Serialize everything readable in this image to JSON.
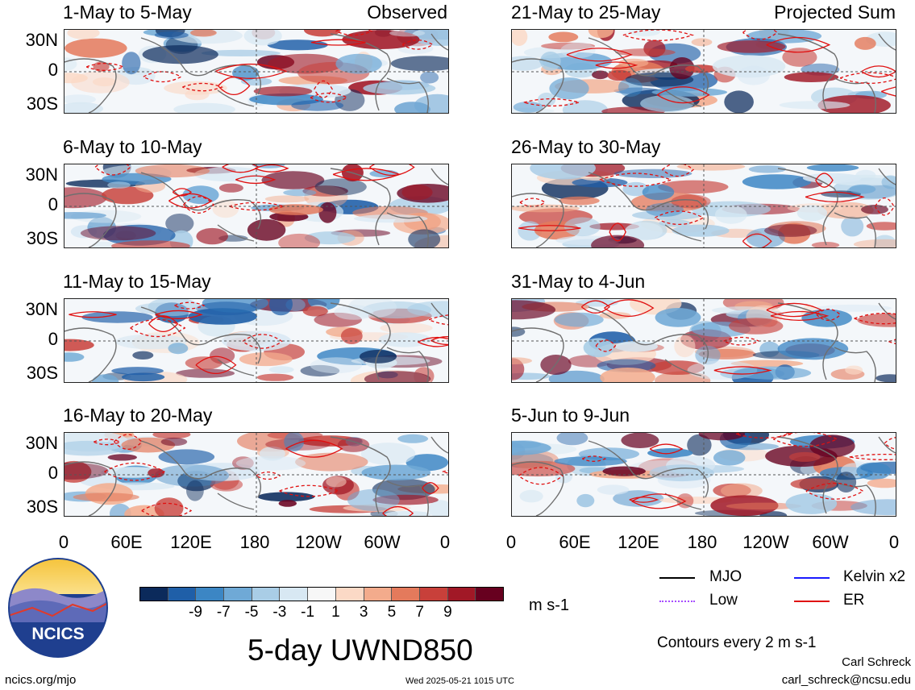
{
  "panels": [
    {
      "title": "1-May to 5-May",
      "corner": "Observed"
    },
    {
      "title": "21-May to 25-May",
      "corner": "Projected Sum"
    },
    {
      "title": "6-May to 10-May",
      "corner": ""
    },
    {
      "title": "26-May to 30-May",
      "corner": ""
    },
    {
      "title": "11-May to 15-May",
      "corner": ""
    },
    {
      "title": "31-May to 4-Jun",
      "corner": ""
    },
    {
      "title": "16-May to 20-May",
      "corner": ""
    },
    {
      "title": "5-Jun to 9-Jun",
      "corner": ""
    }
  ],
  "lat_labels": [
    "30N",
    "0",
    "30S"
  ],
  "lon_labels": [
    "0",
    "60E",
    "120E",
    "180",
    "120W",
    "60W",
    "0"
  ],
  "colorbar": {
    "colors": [
      "#0b2a5b",
      "#1f5fa8",
      "#3c86c4",
      "#6fa9d6",
      "#a9cde6",
      "#d8e8f3",
      "#f7f7f7",
      "#fbd9c6",
      "#f3ab8c",
      "#e47a5c",
      "#c8403a",
      "#a11826",
      "#67001f"
    ],
    "labels": [
      "-9",
      "-7",
      "-5",
      "-3",
      "-1",
      "1",
      "3",
      "5",
      "7",
      "9"
    ],
    "units": "m s-1"
  },
  "main_title": "5-day UWND850",
  "legend": [
    {
      "label": "MJO",
      "color": "#000000"
    },
    {
      "label": "Kelvin x2",
      "color": "#1a1aff"
    },
    {
      "label": "Low",
      "color": "#a64dff"
    },
    {
      "label": "ER",
      "color": "#e01010"
    }
  ],
  "contour_note": "Contours every 2 m s-1",
  "logo_text": "NCICS",
  "footer": {
    "website": "ncics.org/mjo",
    "timestamp": "Wed 2025-05-21 1015 UTC",
    "author": "Carl Schreck",
    "email": "carl_schreck@ncsu.edu"
  }
}
